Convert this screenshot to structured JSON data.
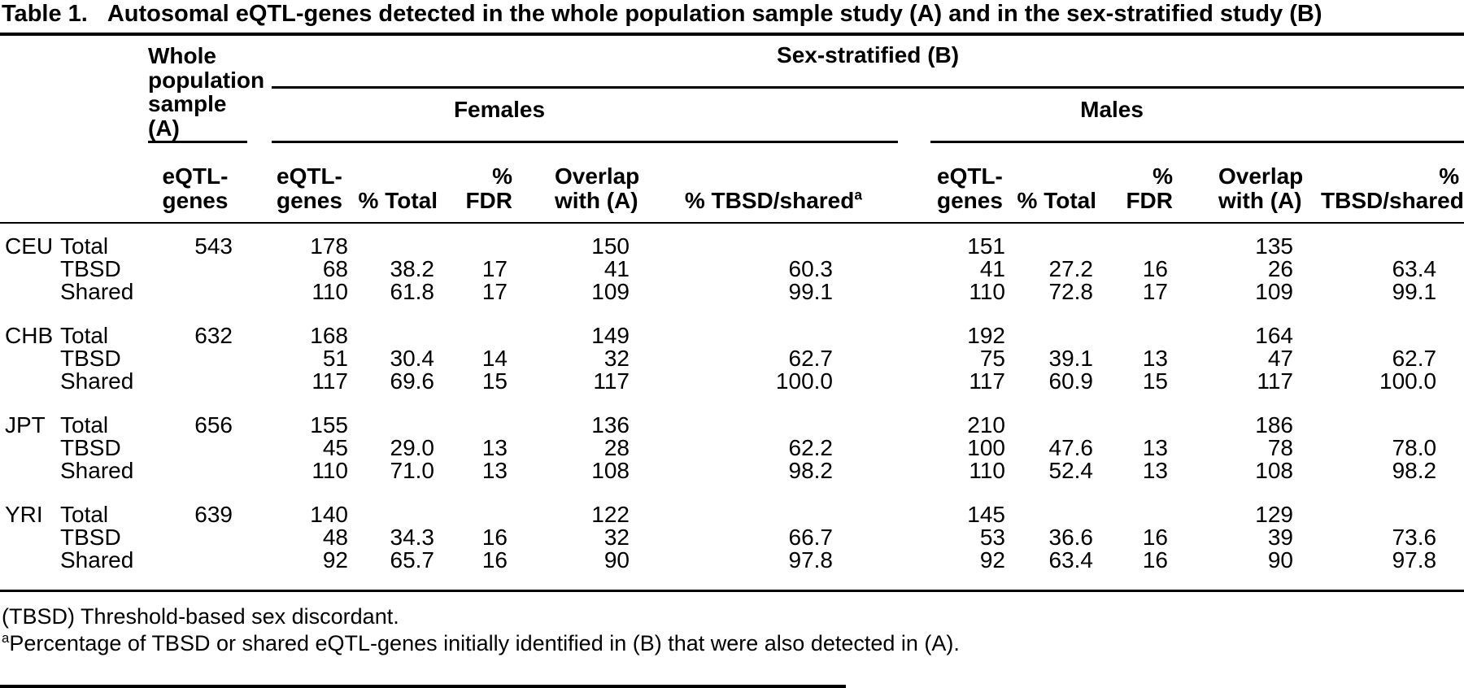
{
  "title": {
    "label": "Table 1.",
    "text": "Autosomal eQTL-genes detected in the whole population sample study (A) and in the sex-stratified study (B)"
  },
  "header": {
    "whole_population": "Whole population sample (A)",
    "sex_stratified": "Sex-stratified (B)",
    "females": "Females",
    "males": "Males",
    "col_eqtl_genes": "eQTL-genes",
    "col_pct_total": "% Total",
    "col_pct_fdr": "% FDR",
    "col_overlap": "Overlap with (A)",
    "col_tbsd_shared": "% TBSD/shared",
    "col_tbsd_shared_sup": "a"
  },
  "chart_data": {
    "type": "table",
    "title": "Table 1. Autosomal eQTL-genes detected in the whole population sample study (A) and in the sex-stratified study (B)",
    "column_groups": [
      "Whole population sample (A)",
      "Sex-stratified (B) Females",
      "Sex-stratified (B) Males"
    ],
    "columns": [
      "Population",
      "Row",
      "Whole eQTL-genes",
      "F eQTL-genes",
      "F % Total",
      "F % FDR",
      "F Overlap with (A)",
      "F % TBSD/shared",
      "M eQTL-genes",
      "M % Total",
      "M % FDR",
      "M Overlap with (A)",
      "M % TBSD/shared"
    ],
    "rows": [
      [
        "CEU",
        "Total",
        "543",
        "178",
        "",
        "",
        "150",
        "",
        "151",
        "",
        "",
        "135",
        ""
      ],
      [
        "CEU",
        "TBSD",
        "",
        "68",
        "38.2",
        "17",
        "41",
        "60.3",
        "41",
        "27.2",
        "16",
        "26",
        "63.4"
      ],
      [
        "CEU",
        "Shared",
        "",
        "110",
        "61.8",
        "17",
        "109",
        "99.1",
        "110",
        "72.8",
        "17",
        "109",
        "99.1"
      ],
      [
        "CHB",
        "Total",
        "632",
        "168",
        "",
        "",
        "149",
        "",
        "192",
        "",
        "",
        "164",
        ""
      ],
      [
        "CHB",
        "TBSD",
        "",
        "51",
        "30.4",
        "14",
        "32",
        "62.7",
        "75",
        "39.1",
        "13",
        "47",
        "62.7"
      ],
      [
        "CHB",
        "Shared",
        "",
        "117",
        "69.6",
        "15",
        "117",
        "100.0",
        "117",
        "60.9",
        "15",
        "117",
        "100.0"
      ],
      [
        "JPT",
        "Total",
        "656",
        "155",
        "",
        "",
        "136",
        "",
        "210",
        "",
        "",
        "186",
        ""
      ],
      [
        "JPT",
        "TBSD",
        "",
        "45",
        "29.0",
        "13",
        "28",
        "62.2",
        "100",
        "47.6",
        "13",
        "78",
        "78.0"
      ],
      [
        "JPT",
        "Shared",
        "",
        "110",
        "71.0",
        "13",
        "108",
        "98.2",
        "110",
        "52.4",
        "13",
        "108",
        "98.2"
      ],
      [
        "YRI",
        "Total",
        "639",
        "140",
        "",
        "",
        "122",
        "",
        "145",
        "",
        "",
        "129",
        ""
      ],
      [
        "YRI",
        "TBSD",
        "",
        "48",
        "34.3",
        "16",
        "32",
        "66.7",
        "53",
        "36.6",
        "16",
        "39",
        "73.6"
      ],
      [
        "YRI",
        "Shared",
        "",
        "92",
        "65.7",
        "16",
        "90",
        "97.8",
        "92",
        "63.4",
        "16",
        "90",
        "97.8"
      ]
    ]
  },
  "groups": [
    {
      "population": "CEU",
      "rows": [
        {
          "label": "Total",
          "whole": "543",
          "f": [
            "178",
            "",
            "",
            "150",
            ""
          ],
          "m": [
            "151",
            "",
            "",
            "135",
            ""
          ]
        },
        {
          "label": "TBSD",
          "whole": "",
          "f": [
            "68",
            "38.2",
            "17",
            "41",
            "60.3"
          ],
          "m": [
            "41",
            "27.2",
            "16",
            "26",
            "63.4"
          ]
        },
        {
          "label": "Shared",
          "whole": "",
          "f": [
            "110",
            "61.8",
            "17",
            "109",
            "99.1"
          ],
          "m": [
            "110",
            "72.8",
            "17",
            "109",
            "99.1"
          ]
        }
      ]
    },
    {
      "population": "CHB",
      "rows": [
        {
          "label": "Total",
          "whole": "632",
          "f": [
            "168",
            "",
            "",
            "149",
            ""
          ],
          "m": [
            "192",
            "",
            "",
            "164",
            ""
          ]
        },
        {
          "label": "TBSD",
          "whole": "",
          "f": [
            "51",
            "30.4",
            "14",
            "32",
            "62.7"
          ],
          "m": [
            "75",
            "39.1",
            "13",
            "47",
            "62.7"
          ]
        },
        {
          "label": "Shared",
          "whole": "",
          "f": [
            "117",
            "69.6",
            "15",
            "117",
            "100.0"
          ],
          "m": [
            "117",
            "60.9",
            "15",
            "117",
            "100.0"
          ]
        }
      ]
    },
    {
      "population": "JPT",
      "rows": [
        {
          "label": "Total",
          "whole": "656",
          "f": [
            "155",
            "",
            "",
            "136",
            ""
          ],
          "m": [
            "210",
            "",
            "",
            "186",
            ""
          ]
        },
        {
          "label": "TBSD",
          "whole": "",
          "f": [
            "45",
            "29.0",
            "13",
            "28",
            "62.2"
          ],
          "m": [
            "100",
            "47.6",
            "13",
            "78",
            "78.0"
          ]
        },
        {
          "label": "Shared",
          "whole": "",
          "f": [
            "110",
            "71.0",
            "13",
            "108",
            "98.2"
          ],
          "m": [
            "110",
            "52.4",
            "13",
            "108",
            "98.2"
          ]
        }
      ]
    },
    {
      "population": "YRI",
      "rows": [
        {
          "label": "Total",
          "whole": "639",
          "f": [
            "140",
            "",
            "",
            "122",
            ""
          ],
          "m": [
            "145",
            "",
            "",
            "129",
            ""
          ]
        },
        {
          "label": "TBSD",
          "whole": "",
          "f": [
            "48",
            "34.3",
            "16",
            "32",
            "66.7"
          ],
          "m": [
            "53",
            "36.6",
            "16",
            "39",
            "73.6"
          ]
        },
        {
          "label": "Shared",
          "whole": "",
          "f": [
            "92",
            "65.7",
            "16",
            "90",
            "97.8"
          ],
          "m": [
            "92",
            "63.4",
            "16",
            "90",
            "97.8"
          ]
        }
      ]
    }
  ],
  "footnotes": {
    "line1": "(TBSD) Threshold-based sex discordant.",
    "line2_sup": "a",
    "line2": "Percentage of TBSD or shared eQTL-genes initially identified in (B) that were also detected in (A)."
  }
}
